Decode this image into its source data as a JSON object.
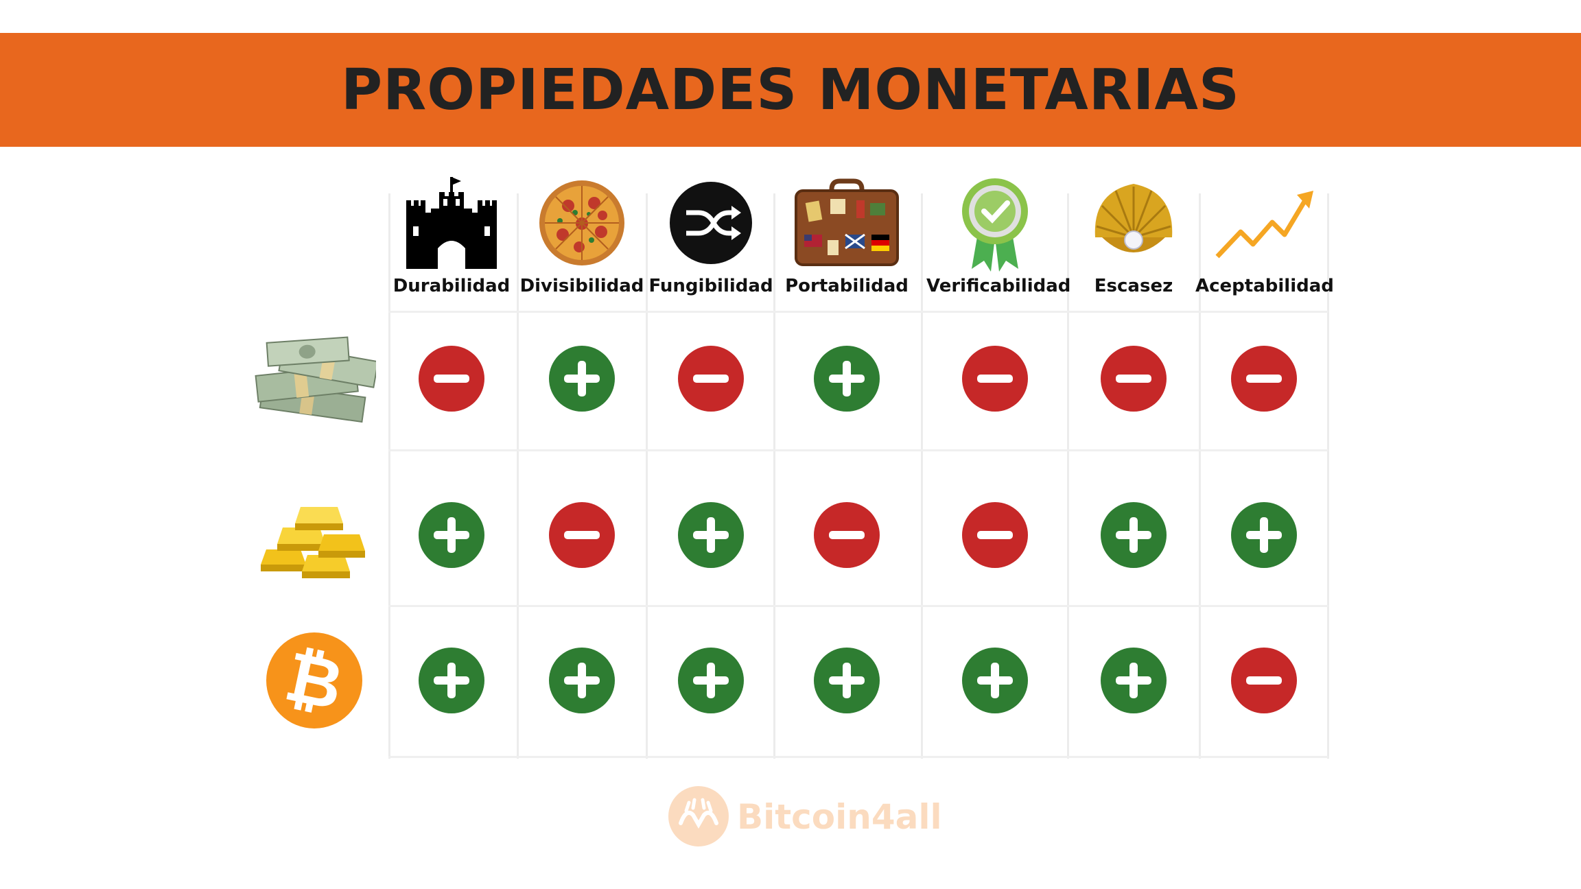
{
  "title": "PROPIEDADES MONETARIAS",
  "colors": {
    "banner": "#E8671E",
    "plus": "#2E7D32",
    "minus": "#C62828",
    "bitcoin": "#F7931A"
  },
  "properties": [
    {
      "label": "Durabilidad",
      "icon": "castle-icon"
    },
    {
      "label": "Divisibilidad",
      "icon": "pizza-icon"
    },
    {
      "label": "Fungibilidad",
      "icon": "shuffle-icon"
    },
    {
      "label": "Portabilidad",
      "icon": "suitcase-icon"
    },
    {
      "label": "Verificabilidad",
      "icon": "ribbon-badge-icon"
    },
    {
      "label": "Escasez",
      "icon": "pearl-shell-icon"
    },
    {
      "label": "Aceptabilidad",
      "icon": "trend-arrow-icon"
    }
  ],
  "assets": [
    {
      "icon": "banknotes-icon",
      "marks": [
        "minus",
        "plus",
        "minus",
        "plus",
        "minus",
        "minus",
        "minus"
      ]
    },
    {
      "icon": "gold-bars-icon",
      "marks": [
        "plus",
        "minus",
        "plus",
        "minus",
        "minus",
        "plus",
        "plus"
      ]
    },
    {
      "icon": "bitcoin-icon",
      "marks": [
        "plus",
        "plus",
        "plus",
        "plus",
        "plus",
        "plus",
        "minus"
      ]
    }
  ],
  "bitcoin_symbol": "₿",
  "watermark": "Bitcoin4all"
}
